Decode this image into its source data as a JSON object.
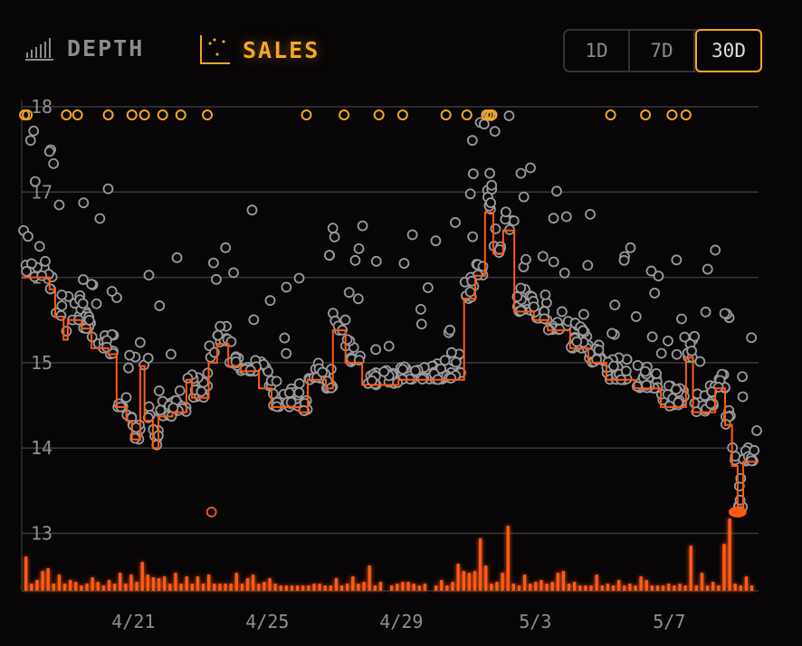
{
  "header": {
    "tabs": [
      {
        "label": "DEPTH",
        "icon": "bar-chart-icon",
        "active": false
      },
      {
        "label": "SALES",
        "icon": "scatter-chart-icon",
        "active": true
      }
    ],
    "ranges": [
      {
        "label": "1D",
        "active": false
      },
      {
        "label": "7D",
        "active": false
      },
      {
        "label": "30D",
        "active": true
      }
    ]
  },
  "colors": {
    "accent": "#f5a623",
    "floor_line": "#ff5a14",
    "volume": "#ff5a14",
    "sale_point": "#9a9a9a",
    "grid": "#3a3a3a"
  },
  "chart_data": {
    "type": "scatter",
    "title": "",
    "ylim": [
      12.3,
      18
    ],
    "xlim": [
      "04-17T16",
      "05-09T16"
    ],
    "yticks": [
      "13",
      "14",
      "15",
      "16",
      "17",
      "18"
    ],
    "xticks": [
      {
        "label": "4/21",
        "t": "04-21T00"
      },
      {
        "label": "4/25",
        "t": "04-25T00"
      },
      {
        "label": "4/29",
        "t": "04-29T00"
      },
      {
        "label": "5/3",
        "t": "05-03T00"
      },
      {
        "label": "5/7",
        "t": "05-07T00"
      }
    ],
    "grid": true,
    "floor_step_series": [
      [
        "04-17T16",
        16.0
      ],
      [
        "04-18T12",
        15.86
      ],
      [
        "04-18T16",
        15.54
      ],
      [
        "04-18T22",
        15.27
      ],
      [
        "04-19T01",
        15.5
      ],
      [
        "04-19T11",
        15.4
      ],
      [
        "04-19T18",
        15.17
      ],
      [
        "04-20T06",
        15.1
      ],
      [
        "04-20T12",
        14.48
      ],
      [
        "04-20T19",
        14.32
      ],
      [
        "04-20T23",
        14.1
      ],
      [
        "04-21T05",
        14.96
      ],
      [
        "04-21T08",
        14.32
      ],
      [
        "04-21T14",
        14.0
      ],
      [
        "04-21T18",
        14.37
      ],
      [
        "04-22T04",
        14.42
      ],
      [
        "04-22T14",
        14.8
      ],
      [
        "04-22T18",
        14.59
      ],
      [
        "04-23T06",
        15.0
      ],
      [
        "04-23T12",
        15.22
      ],
      [
        "04-23T20",
        14.96
      ],
      [
        "04-24T05",
        14.9
      ],
      [
        "04-24T18",
        14.7
      ],
      [
        "04-25T03",
        14.48
      ],
      [
        "04-25T23",
        14.42
      ],
      [
        "04-26T05",
        14.8
      ],
      [
        "04-26T18",
        14.7
      ],
      [
        "04-26T23",
        15.38
      ],
      [
        "04-27T08",
        15.0
      ],
      [
        "04-27T20",
        14.74
      ],
      [
        "04-28T22",
        14.8
      ],
      [
        "04-30T13",
        14.8
      ],
      [
        "04-30T21",
        15.75
      ],
      [
        "05-01T05",
        16.02
      ],
      [
        "05-01T12",
        16.76
      ],
      [
        "05-01T18",
        16.28
      ],
      [
        "05-02T01",
        16.55
      ],
      [
        "05-02T09",
        15.6
      ],
      [
        "05-02T23",
        15.5
      ],
      [
        "05-03T09",
        15.38
      ],
      [
        "05-04T01",
        15.17
      ],
      [
        "05-04T14",
        15.0
      ],
      [
        "05-05T03",
        14.8
      ],
      [
        "05-05T23",
        14.7
      ],
      [
        "05-06T18",
        14.48
      ],
      [
        "05-07T12",
        15.06
      ],
      [
        "05-07T17",
        14.42
      ],
      [
        "05-08T09",
        14.7
      ],
      [
        "05-08T16",
        14.27
      ],
      [
        "05-08T21",
        13.79
      ],
      [
        "05-09T01",
        13.31
      ],
      [
        "05-09T05",
        13.84
      ],
      [
        "05-09T16",
        13.84
      ]
    ],
    "outliers_above_range": [
      "04-17T18",
      "04-17T20",
      "04-19T00",
      "04-19T08",
      "04-20T06",
      "04-20T23",
      "04-21T08",
      "04-21T21",
      "04-22T10",
      "04-23T05",
      "04-26T04",
      "04-27T07",
      "04-28T08",
      "04-29T01",
      "04-30T08",
      "04-30T23",
      "05-01T13",
      "05-01T15",
      "05-01T17",
      "05-05T06",
      "05-06T07",
      "05-07T02",
      "05-07T12"
    ],
    "highlighted_sales": [
      [
        "04-23T08",
        13.25
      ]
    ],
    "last_sale": [
      "05-09T01",
      13.25
    ],
    "volume": [
      38,
      8,
      12,
      22,
      25,
      8,
      18,
      8,
      12,
      10,
      6,
      8,
      15,
      10,
      6,
      12,
      8,
      20,
      8,
      18,
      10,
      32,
      18,
      15,
      14,
      16,
      8,
      20,
      8,
      16,
      8,
      16,
      8,
      18,
      8,
      8,
      8,
      8,
      20,
      8,
      14,
      18,
      8,
      10,
      14,
      8,
      6,
      6,
      6,
      6,
      6,
      6,
      8,
      8,
      6,
      6,
      14,
      6,
      8,
      16,
      8,
      10,
      28,
      6,
      10,
      0,
      6,
      8,
      10,
      10,
      8,
      6,
      8,
      0,
      6,
      12,
      6,
      10,
      30,
      22,
      20,
      22,
      58,
      28,
      8,
      10,
      20,
      72,
      8,
      6,
      18,
      8,
      10,
      12,
      8,
      10,
      20,
      22,
      8,
      10,
      6,
      6,
      6,
      18,
      6,
      8,
      6,
      12,
      6,
      8,
      6,
      16,
      12,
      6,
      6,
      6,
      8,
      6,
      8,
      6,
      50,
      6,
      20,
      6,
      10,
      6,
      52,
      80,
      8,
      6,
      16,
      6
    ]
  }
}
